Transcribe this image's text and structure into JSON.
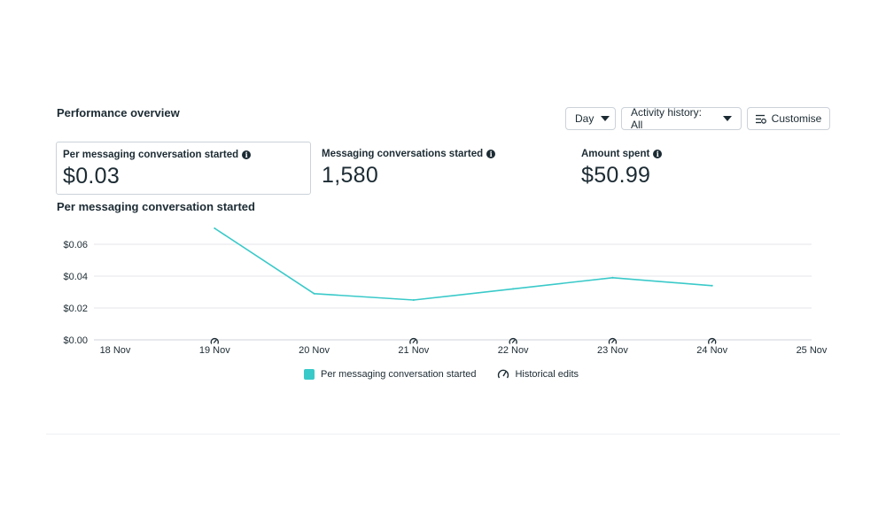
{
  "header": {
    "title": "Performance overview",
    "controls": {
      "day_label": "Day",
      "activity_label": "Activity history: All",
      "customise_label": "Customise"
    }
  },
  "metrics": [
    {
      "label": "Per messaging conversation started",
      "value": "$0.03",
      "selected": true
    },
    {
      "label": "Messaging conversations started",
      "value": "1,580",
      "selected": false
    },
    {
      "label": "Amount spent",
      "value": "$50.99",
      "selected": false
    }
  ],
  "icons": {
    "info": "info-icon",
    "dropdown": "caret-down-icon",
    "customise": "customise-icon",
    "historical_edit": "gauge-edit-icon"
  },
  "colors": {
    "series": "#3ac9c9",
    "text": "#1c2b33",
    "grid": "#e4e6eb",
    "border": "#cbd2d9"
  },
  "chart_title": "Per messaging conversation started",
  "chart_data": {
    "type": "line",
    "x": [
      "18 Nov",
      "19 Nov",
      "20 Nov",
      "21 Nov",
      "22 Nov",
      "23 Nov",
      "24 Nov",
      "25 Nov"
    ],
    "series": [
      {
        "name": "Per messaging conversation started",
        "x": [
          "19 Nov",
          "20 Nov",
          "21 Nov",
          "22 Nov",
          "23 Nov",
          "24 Nov"
        ],
        "values": [
          0.07,
          0.029,
          0.025,
          0.032,
          0.039,
          0.034
        ]
      }
    ],
    "yticks": [
      "$0.00",
      "$0.02",
      "$0.04",
      "$0.06"
    ],
    "ylim": [
      0,
      0.07
    ],
    "grid": true,
    "historical_edit_markers": [
      "19 Nov",
      "21 Nov",
      "22 Nov",
      "23 Nov",
      "24 Nov"
    ]
  },
  "legend": {
    "series_label": "Per messaging conversation started",
    "edits_label": "Historical edits"
  }
}
